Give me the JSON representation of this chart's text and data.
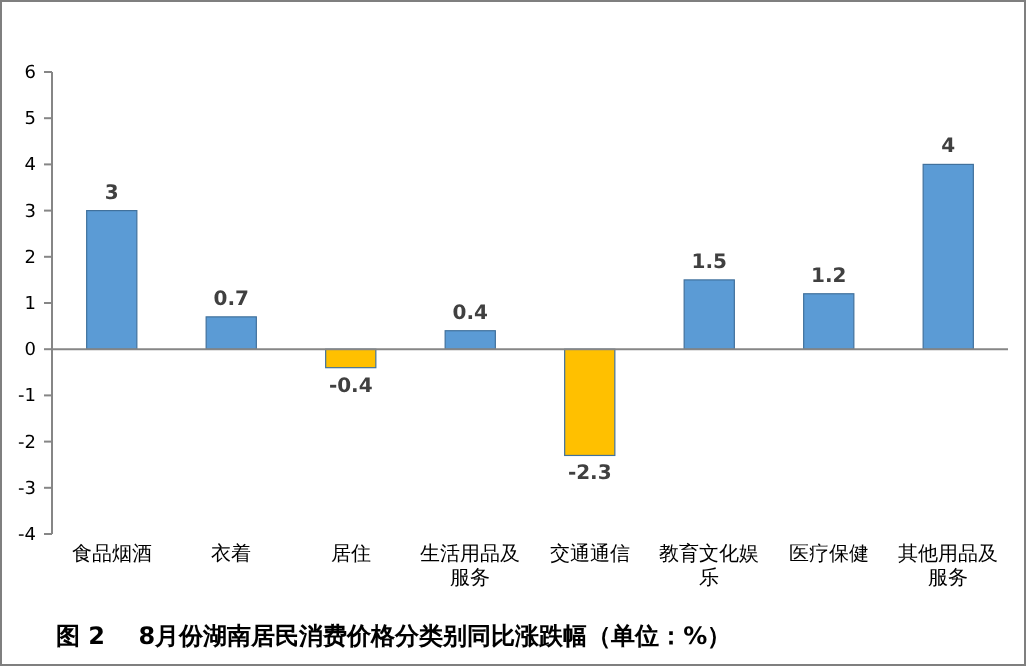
{
  "chart_data": {
    "type": "bar",
    "title": "图 2    8月份湖南居民消费价格分类别同比涨跌幅（单位：%）",
    "categories": [
      "食品烟酒",
      "衣着",
      "居住",
      "生活用品及服务",
      "交通通信",
      "教育文化娱乐",
      "医疗保健",
      "其他用品及服务"
    ],
    "values": [
      3,
      0.7,
      -0.4,
      0.4,
      -2.3,
      1.5,
      1.2,
      4
    ],
    "colors": [
      "#5b9bd5",
      "#5b9bd5",
      "#ffc000",
      "#5b9bd5",
      "#ffc000",
      "#5b9bd5",
      "#5b9bd5",
      "#5b9bd5"
    ],
    "ylim": [
      -4,
      6
    ],
    "yticks": [
      -4,
      -3,
      -2,
      -1,
      0,
      1,
      2,
      3,
      4,
      5,
      6
    ],
    "data_labels": true
  }
}
